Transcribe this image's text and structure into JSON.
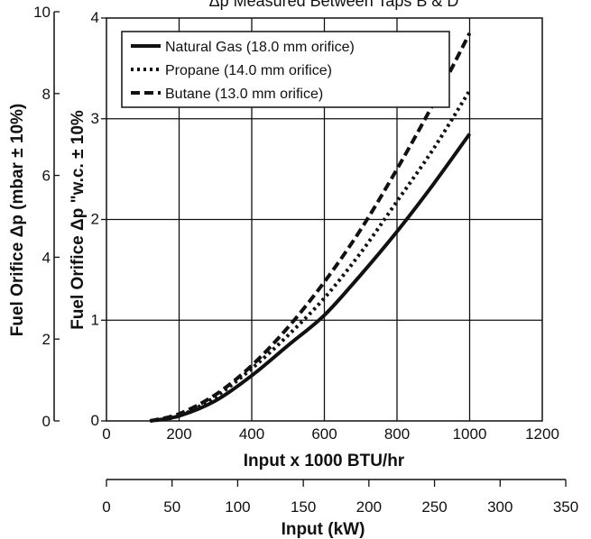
{
  "chart_data": {
    "type": "line",
    "title": "Δp Measured Between Taps B & D",
    "xlabel": "Input x 1000 BTU/hr",
    "ylabel": "Fuel Orifice Δp \"w.c. ± 10%",
    "xlim": [
      0,
      1200
    ],
    "ylim": [
      0,
      4
    ],
    "x_ticks": [
      "0",
      "200",
      "400",
      "600",
      "800",
      "1000",
      "1200"
    ],
    "y_ticks": [
      "0",
      "1",
      "2",
      "3",
      "4"
    ],
    "grid": true,
    "legend_position": "top-left",
    "secondary_y_axis": {
      "label": "Fuel Orifice Δp (mbar ± 10%)",
      "ylim": [
        0,
        10
      ],
      "ticks": [
        "0",
        "2",
        "4",
        "6",
        "8",
        "10"
      ]
    },
    "secondary_x_axis": {
      "label": "Input (kW)",
      "xlim": [
        0,
        350
      ],
      "ticks": [
        "0",
        "50",
        "100",
        "150",
        "200",
        "250",
        "300",
        "350"
      ]
    },
    "series": [
      {
        "name": "Natural Gas (18.0 mm orifice)",
        "style": "solid",
        "x": [
          120,
          200,
          300,
          400,
          500,
          600,
          700,
          800,
          900,
          1000
        ],
        "y": [
          0.0,
          0.05,
          0.2,
          0.45,
          0.75,
          1.05,
          1.45,
          1.88,
          2.35,
          2.85
        ]
      },
      {
        "name": "Propane (14.0 mm orifice)",
        "style": "dotted",
        "x": [
          120,
          200,
          300,
          400,
          500,
          600,
          700,
          800,
          900,
          1000
        ],
        "y": [
          0.0,
          0.05,
          0.24,
          0.52,
          0.85,
          1.22,
          1.67,
          2.18,
          2.7,
          3.28
        ]
      },
      {
        "name": "Butane (13.0 mm orifice)",
        "style": "dashed",
        "x": [
          120,
          200,
          300,
          400,
          500,
          600,
          700,
          800,
          900,
          1000
        ],
        "y": [
          0.0,
          0.07,
          0.26,
          0.55,
          0.93,
          1.38,
          1.9,
          2.5,
          3.15,
          3.85
        ]
      }
    ]
  }
}
